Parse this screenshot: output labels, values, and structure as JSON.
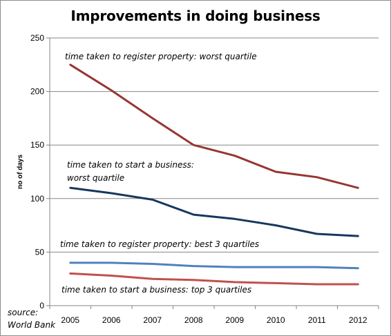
{
  "chart_data": {
    "type": "line",
    "title": "Improvements in doing business",
    "ylabel": "no of days",
    "xlabel": "",
    "x": [
      "2005",
      "2006",
      "2007",
      "2008",
      "2009",
      "2010",
      "2011",
      "2012"
    ],
    "ylim": [
      0,
      250
    ],
    "yticks": [
      0,
      50,
      100,
      150,
      200,
      250
    ],
    "grid": true,
    "series": [
      {
        "label": "time taken to register property: worst quartile",
        "color": "#963634",
        "values": [
          225,
          201,
          175,
          150,
          140,
          125,
          120,
          110
        ]
      },
      {
        "label": "time taken to start a business: worst quartile",
        "color": "#17375e",
        "values": [
          110,
          105,
          99,
          85,
          81,
          75,
          67,
          65
        ]
      },
      {
        "label": "time taken to register property:  best 3 quartiles",
        "color": "#4f81bd",
        "values": [
          40,
          40,
          39,
          37,
          36,
          36,
          36,
          35
        ]
      },
      {
        "label": "time taken to start a business:  top 3 quartiles",
        "color": "#c0504d",
        "values": [
          30,
          28,
          25,
          24,
          22,
          21,
          20,
          20
        ]
      }
    ],
    "annotations": [
      "time taken to register property: worst quartile",
      "time taken to start a business:",
      "worst quartile",
      "time taken to register property:  best 3 quartiles",
      "time taken to start a business:  top 3 quartiles"
    ],
    "source": [
      "source:",
      "World Bank"
    ]
  }
}
